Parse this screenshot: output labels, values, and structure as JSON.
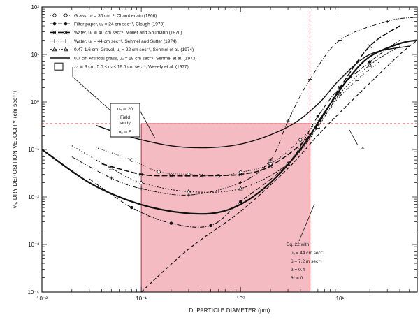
{
  "chart_data": {
    "type": "line",
    "title": "",
    "xlabel": "D, PARTICLE DIAMETER (µm)",
    "ylabel": "vₐ, DRY DEPOSITION VELOCITY (cm sec⁻¹)",
    "x_scale": "log",
    "y_scale": "log",
    "xlim": [
      0.01,
      60
    ],
    "ylim": [
      0.0001,
      100
    ],
    "x_ticks": [
      {
        "value": 0.01,
        "label": "10⁻²"
      },
      {
        "value": 0.1,
        "label": "10⁻¹"
      },
      {
        "value": 1,
        "label": "10⁰"
      },
      {
        "value": 10,
        "label": "10¹"
      }
    ],
    "y_ticks": [
      {
        "value": 0.0001,
        "label": "10⁻⁴"
      },
      {
        "value": 0.001,
        "label": "10⁻³"
      },
      {
        "value": 0.01,
        "label": "10⁻²"
      },
      {
        "value": 0.1,
        "label": "10⁻¹"
      },
      {
        "value": 1,
        "label": "10⁰"
      },
      {
        "value": 10,
        "label": "10¹"
      },
      {
        "value": 100,
        "label": "10²"
      }
    ],
    "grid": false,
    "legend_position": "top-left",
    "series": [
      {
        "name": "Grass, uₓ = 30 cm⁻¹, Chamberlain (1966)",
        "style": "dotted",
        "marker": "circle-open",
        "points": [
          [
            0.035,
            0.11
          ],
          [
            0.08,
            0.06
          ],
          [
            0.15,
            0.034
          ],
          [
            0.3,
            0.03
          ],
          [
            0.6,
            0.028
          ],
          [
            1,
            0.033
          ],
          [
            2,
            0.05
          ],
          [
            4,
            0.16
          ],
          [
            8,
            0.8
          ],
          [
            15,
            3
          ],
          [
            25,
            7
          ]
        ]
      },
      {
        "name": "Filter paper, uₓ = 24 cm sec⁻¹, Clough (1973)",
        "style": "dash-dot",
        "marker": "dot",
        "points": [
          [
            0.03,
            0.024
          ],
          [
            0.08,
            0.006
          ],
          [
            0.2,
            0.0028
          ],
          [
            0.5,
            0.0025
          ],
          [
            1,
            0.008
          ],
          [
            3,
            0.05
          ],
          [
            6,
            0.5
          ],
          [
            10,
            2
          ],
          [
            20,
            7
          ],
          [
            40,
            20
          ]
        ]
      },
      {
        "name": "Water, uₓ ≅ 40 cm sec⁻¹, Möller and Shumann (1970)",
        "style": "long-dash",
        "marker": "x",
        "points": [
          [
            0.04,
            0.05
          ],
          [
            0.1,
            0.03
          ],
          [
            0.2,
            0.028
          ],
          [
            0.4,
            0.028
          ],
          [
            1,
            0.03
          ],
          [
            2,
            0.045
          ],
          [
            5,
            0.2
          ],
          [
            10,
            2
          ],
          [
            20,
            15
          ],
          [
            40,
            40
          ]
        ]
      },
      {
        "name": "Water, uₓ = 44 cm sec⁻¹, Sehmel and Sutter (1974)",
        "style": "dash-dot-dot",
        "marker": "plus",
        "points": [
          [
            0.02,
            0.07
          ],
          [
            0.05,
            0.025
          ],
          [
            0.1,
            0.015
          ],
          [
            0.3,
            0.011
          ],
          [
            1,
            0.02
          ],
          [
            2,
            0.06
          ],
          [
            3,
            0.4
          ],
          [
            5,
            3
          ],
          [
            10,
            20
          ],
          [
            30,
            50
          ],
          [
            55,
            60
          ]
        ]
      },
      {
        "name": "0.47-1.6 cm, Gravel, uₓ = 22 cm sec⁻¹, Sehmel et al. (1974)",
        "style": "short-dash",
        "marker": "triangle-open",
        "points": [
          [
            0.02,
            0.12
          ],
          [
            0.05,
            0.04
          ],
          [
            0.1,
            0.02
          ],
          [
            0.3,
            0.013
          ],
          [
            1,
            0.015
          ],
          [
            3,
            0.05
          ],
          [
            6,
            0.3
          ],
          [
            10,
            1.5
          ],
          [
            20,
            6
          ],
          [
            40,
            15
          ]
        ]
      },
      {
        "name": "0.7 cm Artificial grass, uₓ = 19 cm sec⁻¹, Sehmel et al. (1973)",
        "style": "solid",
        "marker": "none",
        "points": [
          [
            0.035,
            0.32
          ],
          [
            0.1,
            0.16
          ],
          [
            0.3,
            0.11
          ],
          [
            1,
            0.13
          ],
          [
            3,
            0.3
          ],
          [
            6,
            0.9
          ],
          [
            10,
            3
          ],
          [
            20,
            10
          ],
          [
            50,
            15
          ]
        ]
      },
      {
        "name": "Eq. 22",
        "style": "solid-thick",
        "marker": "none",
        "points": [
          [
            0.01,
            0.1
          ],
          [
            0.03,
            0.02
          ],
          [
            0.08,
            0.008
          ],
          [
            0.2,
            0.005
          ],
          [
            0.5,
            0.0045
          ],
          [
            1,
            0.007
          ],
          [
            2,
            0.02
          ],
          [
            4,
            0.1
          ],
          [
            7,
            0.6
          ],
          [
            12,
            3
          ],
          [
            20,
            9
          ],
          [
            40,
            17
          ],
          [
            60,
            20
          ]
        ]
      },
      {
        "name": "vₛ",
        "style": "dashed",
        "marker": "none",
        "points": [
          [
            0.1,
            0.0001
          ],
          [
            0.3,
            0.0008
          ],
          [
            1,
            0.005
          ],
          [
            3,
            0.04
          ],
          [
            6,
            0.2
          ],
          [
            10,
            0.6
          ],
          [
            20,
            2.5
          ],
          [
            40,
            10
          ],
          [
            60,
            20
          ]
        ]
      }
    ],
    "field_study_region": {
      "x_range": [
        0.1,
        5
      ],
      "y_range": [
        0.0001,
        0.35
      ]
    },
    "reference_lines": {
      "x": 5,
      "y": 0.35
    }
  },
  "legend": [
    {
      "style": "dotted",
      "marker": "circle-open",
      "label": "Grass, uₓ = 30 cm⁻¹, Chamberlain (1966)"
    },
    {
      "style": "dash-dot",
      "marker": "dot",
      "label": "Filter paper, uₓ = 24 cm sec⁻¹, Clough (1973)"
    },
    {
      "style": "long-dash",
      "marker": "x",
      "label": "Water, uₓ ≅ 40 cm sec⁻¹, Möller and Shumann (1970)"
    },
    {
      "style": "dash-dot-dot",
      "marker": "plus",
      "label": "Water, uₓ = 44 cm sec⁻¹, Sehmel and Sutter (1974)"
    },
    {
      "style": "short-dash",
      "marker": "triangle-open",
      "label": "0.47-1.6 cm, Gravel, uₓ = 22 cm sec⁻¹, Sehmel et al. (1974)"
    },
    {
      "style": "solid",
      "marker": "none",
      "label": "0.7 cm Artificial grass, uₓ = 19 cm sec⁻¹, Sehmel et al. (1973)"
    },
    {
      "style": "box",
      "marker": "none",
      "label": "z₀ ≅ 3 cm, 5.5 ≤ uₓ ≤ 19.5 cm sec⁻¹, Wesely et al. (1977)"
    }
  ],
  "annotations": {
    "field_box": [
      "uₓ ≅ 20",
      "Field",
      "study",
      "uₓ ≅ 5"
    ],
    "eq22": [
      "Eq. 22 with",
      "uₓ = 44 cm sec⁻¹",
      "ū = 7.2 m sec⁻¹",
      "β = 0.4",
      "θ° = 0"
    ],
    "vs": "vₛ"
  },
  "colors": {
    "shade": "#f4bcc2",
    "ref_line": "#e8323a"
  }
}
